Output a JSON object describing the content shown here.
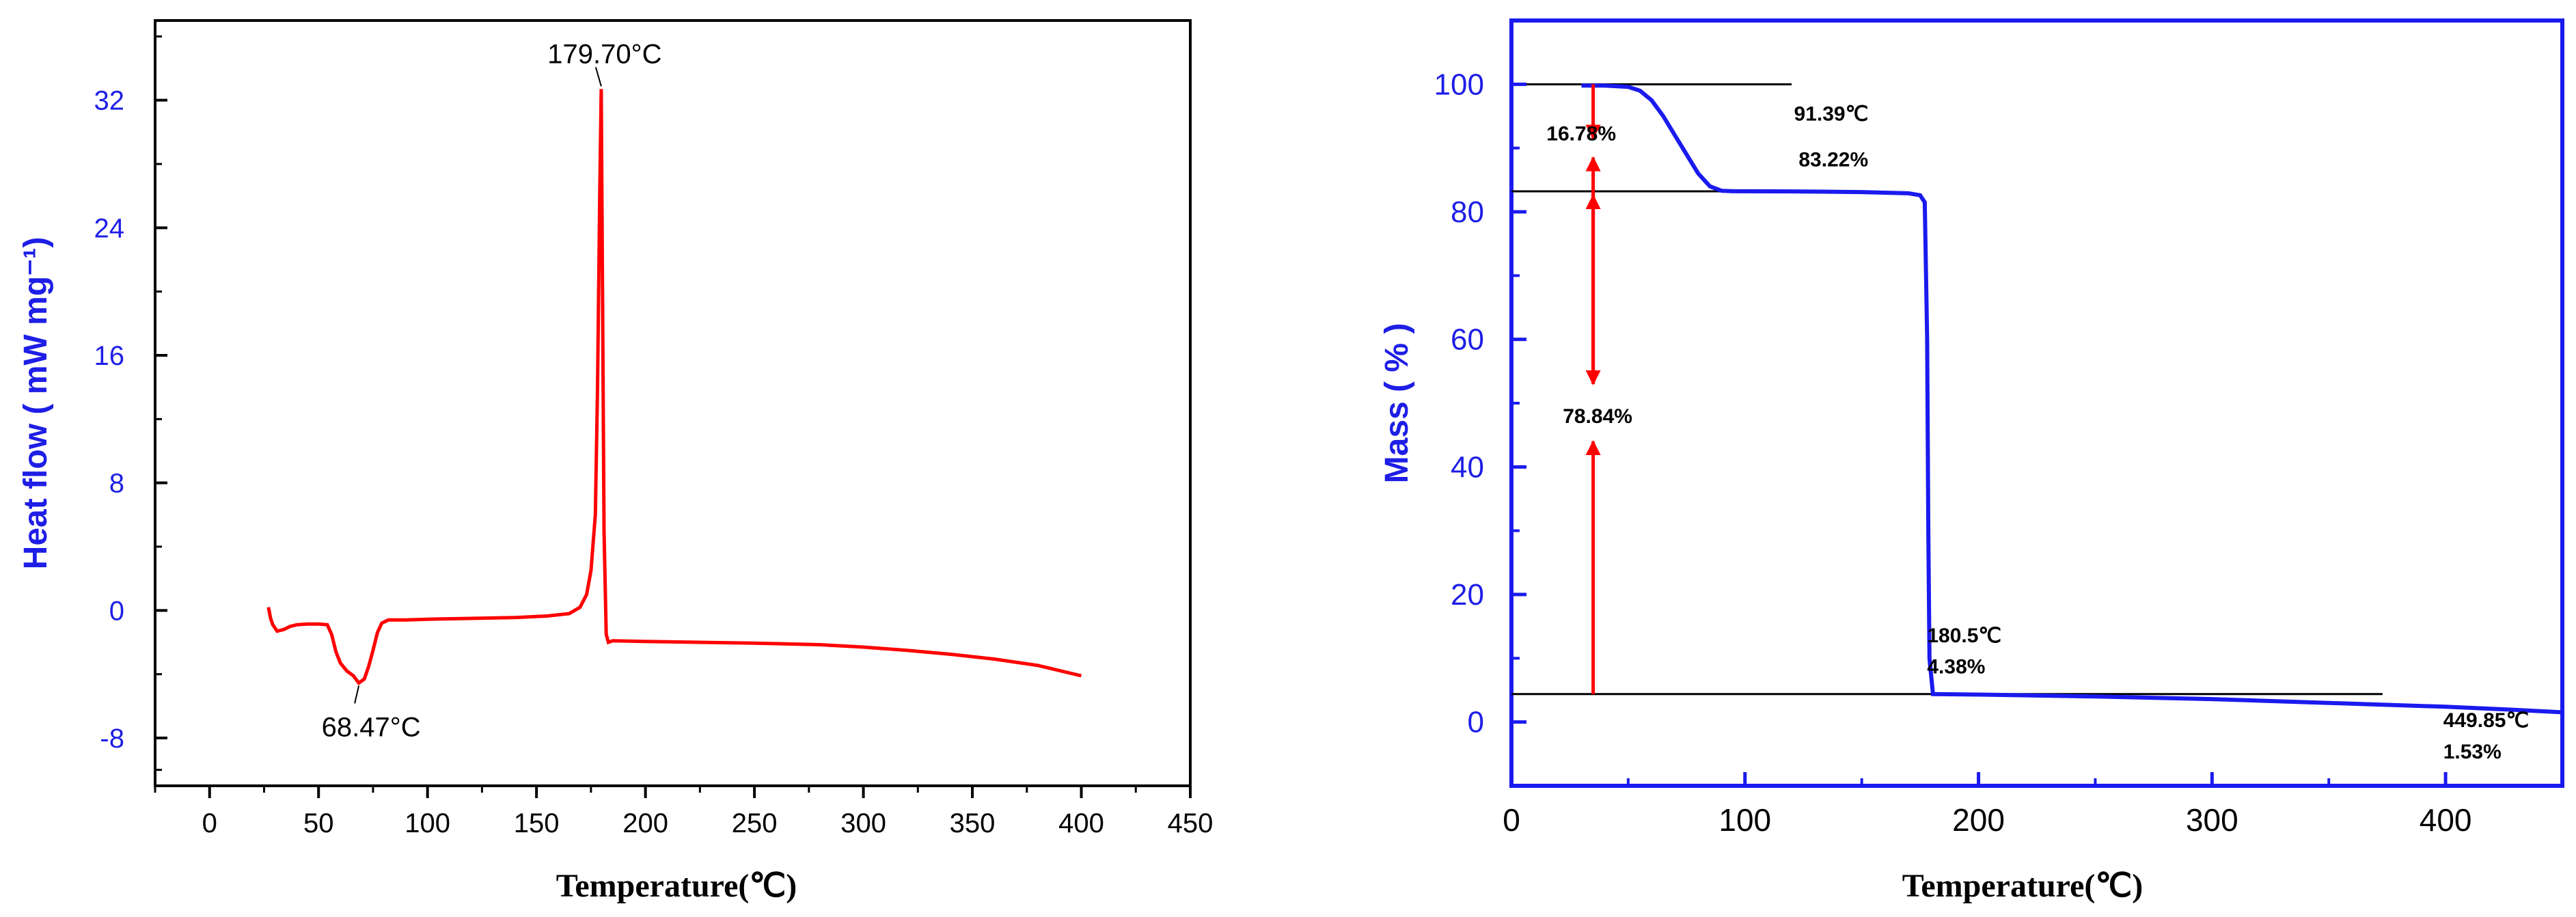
{
  "chart_data": [
    {
      "type": "line",
      "xlabel": "Temperature(℃)",
      "ylabel": "Heat flow ( mW mg⁻¹)",
      "xlim": [
        -25,
        450
      ],
      "ylim": [
        -11,
        37
      ],
      "x_ticks": [
        0,
        50,
        100,
        150,
        200,
        250,
        300,
        350,
        400,
        450
      ],
      "y_ticks": [
        -8,
        0,
        8,
        16,
        24,
        32
      ],
      "grid": false,
      "series": [
        {
          "color": "#ff0000",
          "points": [
            [
              27,
              0.2
            ],
            [
              28,
              -0.5
            ],
            [
              29,
              -0.9
            ],
            [
              31,
              -1.3
            ],
            [
              34,
              -1.2
            ],
            [
              37,
              -1.0
            ],
            [
              40,
              -0.9
            ],
            [
              45,
              -0.85
            ],
            [
              50,
              -0.85
            ],
            [
              54,
              -0.9
            ],
            [
              56,
              -1.5
            ],
            [
              58,
              -2.6
            ],
            [
              60,
              -3.3
            ],
            [
              63,
              -3.8
            ],
            [
              66,
              -4.1
            ],
            [
              68.47,
              -4.55
            ],
            [
              71,
              -4.3
            ],
            [
              73,
              -3.5
            ],
            [
              75,
              -2.5
            ],
            [
              77,
              -1.4
            ],
            [
              79,
              -0.8
            ],
            [
              82,
              -0.6
            ],
            [
              90,
              -0.6
            ],
            [
              100,
              -0.55
            ],
            [
              120,
              -0.5
            ],
            [
              140,
              -0.45
            ],
            [
              155,
              -0.35
            ],
            [
              165,
              -0.2
            ],
            [
              170,
              0.2
            ],
            [
              173,
              1.0
            ],
            [
              175,
              2.5
            ],
            [
              177,
              6.0
            ],
            [
              178,
              14.0
            ],
            [
              179,
              26.0
            ],
            [
              179.7,
              32.7
            ],
            [
              180.3,
              20.0
            ],
            [
              181,
              5.0
            ],
            [
              182,
              -1.5
            ],
            [
              183,
              -2.0
            ],
            [
              185,
              -1.9
            ],
            [
              200,
              -1.95
            ],
            [
              250,
              -2.05
            ],
            [
              280,
              -2.15
            ],
            [
              300,
              -2.3
            ],
            [
              320,
              -2.5
            ],
            [
              340,
              -2.75
            ],
            [
              360,
              -3.05
            ],
            [
              380,
              -3.45
            ],
            [
              400,
              -4.1
            ]
          ]
        }
      ],
      "annotations": [
        {
          "text": "179.70°C",
          "x": 179.7,
          "y": 32.7
        },
        {
          "text": "68.47°C",
          "x": 68.47,
          "y": -4.55
        }
      ]
    },
    {
      "type": "line",
      "xlabel": "Temperature(℃)",
      "ylabel": "Mass ( % )",
      "xlim": [
        0,
        450
      ],
      "ylim": [
        -10,
        110
      ],
      "x_ticks": [
        0,
        100,
        200,
        300,
        400
      ],
      "y_ticks": [
        0,
        20,
        40,
        60,
        80,
        100
      ],
      "grid": false,
      "series": [
        {
          "color": "#1a1aee",
          "points": [
            [
              30,
              99.8
            ],
            [
              40,
              99.8
            ],
            [
              50,
              99.6
            ],
            [
              55,
              99.0
            ],
            [
              60,
              97.5
            ],
            [
              65,
              95.0
            ],
            [
              70,
              92.0
            ],
            [
              75,
              89.0
            ],
            [
              80,
              86.0
            ],
            [
              85,
              84.0
            ],
            [
              90,
              83.3
            ],
            [
              95,
              83.22
            ],
            [
              120,
              83.2
            ],
            [
              150,
              83.1
            ],
            [
              170,
              82.9
            ],
            [
              175,
              82.6
            ],
            [
              177,
              81.5
            ],
            [
              178,
              60.0
            ],
            [
              178.5,
              30.0
            ],
            [
              179,
              10.0
            ],
            [
              180.5,
              4.38
            ],
            [
              200,
              4.3
            ],
            [
              250,
              4.0
            ],
            [
              300,
              3.6
            ],
            [
              350,
              3.0
            ],
            [
              400,
              2.4
            ],
            [
              430,
              1.9
            ],
            [
              449.85,
              1.53
            ]
          ]
        }
      ],
      "reference_lines": [
        {
          "y": 100
        },
        {
          "y": 83.22
        },
        {
          "y": 4.38
        }
      ],
      "annotations": [
        {
          "text": "16.78%"
        },
        {
          "text": "91.39℃"
        },
        {
          "text": "83.22%"
        },
        {
          "text": "78.84%"
        },
        {
          "text": "180.5℃"
        },
        {
          "text": "4.38%"
        },
        {
          "text": "449.85℃"
        },
        {
          "text": "1.53%"
        }
      ]
    }
  ]
}
